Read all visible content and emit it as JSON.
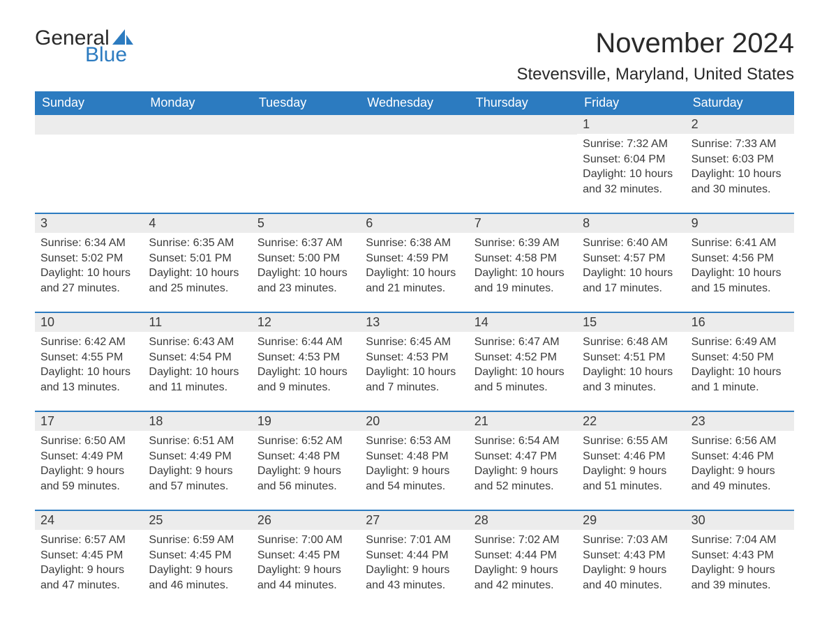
{
  "header": {
    "logo_text1": "General",
    "logo_text2": "Blue",
    "logo_icon_color": "#2c7bc0",
    "month_title": "November 2024",
    "location": "Stevensville, Maryland, United States"
  },
  "styling": {
    "header_bg": "#2c7bc0",
    "header_text": "#ffffff",
    "day_bar_bg": "#ececec",
    "body_text": "#3a3a3a",
    "row_divider": "#2c7bc0",
    "page_bg": "#ffffff",
    "title_fontsize": 40,
    "location_fontsize": 24,
    "weekday_fontsize": 18,
    "daynum_fontsize": 18,
    "content_fontsize": 16
  },
  "weekdays": [
    "Sunday",
    "Monday",
    "Tuesday",
    "Wednesday",
    "Thursday",
    "Friday",
    "Saturday"
  ],
  "weeks": [
    [
      null,
      null,
      null,
      null,
      null,
      {
        "num": "1",
        "sunrise": "Sunrise: 7:32 AM",
        "sunset": "Sunset: 6:04 PM",
        "daylight": "Daylight: 10 hours and 32 minutes."
      },
      {
        "num": "2",
        "sunrise": "Sunrise: 7:33 AM",
        "sunset": "Sunset: 6:03 PM",
        "daylight": "Daylight: 10 hours and 30 minutes."
      }
    ],
    [
      {
        "num": "3",
        "sunrise": "Sunrise: 6:34 AM",
        "sunset": "Sunset: 5:02 PM",
        "daylight": "Daylight: 10 hours and 27 minutes."
      },
      {
        "num": "4",
        "sunrise": "Sunrise: 6:35 AM",
        "sunset": "Sunset: 5:01 PM",
        "daylight": "Daylight: 10 hours and 25 minutes."
      },
      {
        "num": "5",
        "sunrise": "Sunrise: 6:37 AM",
        "sunset": "Sunset: 5:00 PM",
        "daylight": "Daylight: 10 hours and 23 minutes."
      },
      {
        "num": "6",
        "sunrise": "Sunrise: 6:38 AM",
        "sunset": "Sunset: 4:59 PM",
        "daylight": "Daylight: 10 hours and 21 minutes."
      },
      {
        "num": "7",
        "sunrise": "Sunrise: 6:39 AM",
        "sunset": "Sunset: 4:58 PM",
        "daylight": "Daylight: 10 hours and 19 minutes."
      },
      {
        "num": "8",
        "sunrise": "Sunrise: 6:40 AM",
        "sunset": "Sunset: 4:57 PM",
        "daylight": "Daylight: 10 hours and 17 minutes."
      },
      {
        "num": "9",
        "sunrise": "Sunrise: 6:41 AM",
        "sunset": "Sunset: 4:56 PM",
        "daylight": "Daylight: 10 hours and 15 minutes."
      }
    ],
    [
      {
        "num": "10",
        "sunrise": "Sunrise: 6:42 AM",
        "sunset": "Sunset: 4:55 PM",
        "daylight": "Daylight: 10 hours and 13 minutes."
      },
      {
        "num": "11",
        "sunrise": "Sunrise: 6:43 AM",
        "sunset": "Sunset: 4:54 PM",
        "daylight": "Daylight: 10 hours and 11 minutes."
      },
      {
        "num": "12",
        "sunrise": "Sunrise: 6:44 AM",
        "sunset": "Sunset: 4:53 PM",
        "daylight": "Daylight: 10 hours and 9 minutes."
      },
      {
        "num": "13",
        "sunrise": "Sunrise: 6:45 AM",
        "sunset": "Sunset: 4:53 PM",
        "daylight": "Daylight: 10 hours and 7 minutes."
      },
      {
        "num": "14",
        "sunrise": "Sunrise: 6:47 AM",
        "sunset": "Sunset: 4:52 PM",
        "daylight": "Daylight: 10 hours and 5 minutes."
      },
      {
        "num": "15",
        "sunrise": "Sunrise: 6:48 AM",
        "sunset": "Sunset: 4:51 PM",
        "daylight": "Daylight: 10 hours and 3 minutes."
      },
      {
        "num": "16",
        "sunrise": "Sunrise: 6:49 AM",
        "sunset": "Sunset: 4:50 PM",
        "daylight": "Daylight: 10 hours and 1 minute."
      }
    ],
    [
      {
        "num": "17",
        "sunrise": "Sunrise: 6:50 AM",
        "sunset": "Sunset: 4:49 PM",
        "daylight": "Daylight: 9 hours and 59 minutes."
      },
      {
        "num": "18",
        "sunrise": "Sunrise: 6:51 AM",
        "sunset": "Sunset: 4:49 PM",
        "daylight": "Daylight: 9 hours and 57 minutes."
      },
      {
        "num": "19",
        "sunrise": "Sunrise: 6:52 AM",
        "sunset": "Sunset: 4:48 PM",
        "daylight": "Daylight: 9 hours and 56 minutes."
      },
      {
        "num": "20",
        "sunrise": "Sunrise: 6:53 AM",
        "sunset": "Sunset: 4:48 PM",
        "daylight": "Daylight: 9 hours and 54 minutes."
      },
      {
        "num": "21",
        "sunrise": "Sunrise: 6:54 AM",
        "sunset": "Sunset: 4:47 PM",
        "daylight": "Daylight: 9 hours and 52 minutes."
      },
      {
        "num": "22",
        "sunrise": "Sunrise: 6:55 AM",
        "sunset": "Sunset: 4:46 PM",
        "daylight": "Daylight: 9 hours and 51 minutes."
      },
      {
        "num": "23",
        "sunrise": "Sunrise: 6:56 AM",
        "sunset": "Sunset: 4:46 PM",
        "daylight": "Daylight: 9 hours and 49 minutes."
      }
    ],
    [
      {
        "num": "24",
        "sunrise": "Sunrise: 6:57 AM",
        "sunset": "Sunset: 4:45 PM",
        "daylight": "Daylight: 9 hours and 47 minutes."
      },
      {
        "num": "25",
        "sunrise": "Sunrise: 6:59 AM",
        "sunset": "Sunset: 4:45 PM",
        "daylight": "Daylight: 9 hours and 46 minutes."
      },
      {
        "num": "26",
        "sunrise": "Sunrise: 7:00 AM",
        "sunset": "Sunset: 4:45 PM",
        "daylight": "Daylight: 9 hours and 44 minutes."
      },
      {
        "num": "27",
        "sunrise": "Sunrise: 7:01 AM",
        "sunset": "Sunset: 4:44 PM",
        "daylight": "Daylight: 9 hours and 43 minutes."
      },
      {
        "num": "28",
        "sunrise": "Sunrise: 7:02 AM",
        "sunset": "Sunset: 4:44 PM",
        "daylight": "Daylight: 9 hours and 42 minutes."
      },
      {
        "num": "29",
        "sunrise": "Sunrise: 7:03 AM",
        "sunset": "Sunset: 4:43 PM",
        "daylight": "Daylight: 9 hours and 40 minutes."
      },
      {
        "num": "30",
        "sunrise": "Sunrise: 7:04 AM",
        "sunset": "Sunset: 4:43 PM",
        "daylight": "Daylight: 9 hours and 39 minutes."
      }
    ]
  ]
}
